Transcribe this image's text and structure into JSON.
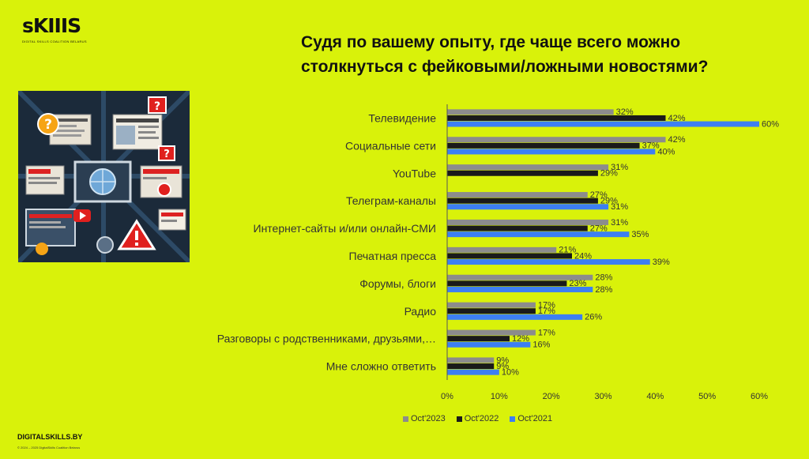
{
  "logo": {
    "text": "sKIIIS",
    "tagline": "DIGITAL SKILLS COALITION BELARUS"
  },
  "title": "Судя по вашему опыту, где чаще всего можно столкнуться с фейковыми/ложными новостями?",
  "footer": {
    "site": "DIGITALSKILLS.BY",
    "copyright": "© 2024 – 2025 DigitalSkills Coalition Belarus"
  },
  "colors": {
    "background": "#d9f20a",
    "oct2023": "#8c8c8c",
    "oct2022": "#1a1a1a",
    "oct2021": "#3d7ff2"
  },
  "illustration": {
    "icons": [
      "question-mark-icon",
      "warning-icon",
      "play-icon",
      "globe-icon"
    ]
  },
  "chart_data": {
    "type": "bar",
    "orientation": "horizontal",
    "categories": [
      "Телевидение",
      "Социальные сети",
      "YouTube",
      "Телеграм-каналы",
      "Интернет-сайты и/или онлайн-СМИ",
      "Печатная пресса",
      "Форумы, блоги",
      "Радио",
      "Разговоры с родственниками, друзьями,…",
      "Мне сложно ответить"
    ],
    "series": [
      {
        "name": "Oct'2023",
        "values": [
          32,
          42,
          31,
          27,
          31,
          21,
          28,
          17,
          17,
          9
        ]
      },
      {
        "name": "Oct'2022",
        "values": [
          42,
          37,
          29,
          29,
          27,
          24,
          23,
          17,
          12,
          9
        ]
      },
      {
        "name": "Oct'2021",
        "values": [
          60,
          40,
          0,
          31,
          35,
          39,
          28,
          26,
          16,
          10
        ]
      }
    ],
    "value_labels": [
      [
        "32%",
        "42%",
        "31%",
        "27%",
        "31%",
        "21%",
        "28%",
        "17%",
        "17%",
        "9%"
      ],
      [
        "42%",
        "37%",
        "29%",
        "29%",
        "27%",
        "24%",
        "23%",
        "17%",
        "12%",
        "9%"
      ],
      [
        "60%",
        "40%",
        "",
        "31%",
        "35%",
        "39%",
        "28%",
        "26%",
        "16%",
        "10%"
      ]
    ],
    "xlim": [
      0,
      60
    ],
    "xticks": [
      "0%",
      "10%",
      "20%",
      "30%",
      "40%",
      "50%",
      "60%"
    ],
    "legend_position": "bottom",
    "grid": false
  }
}
